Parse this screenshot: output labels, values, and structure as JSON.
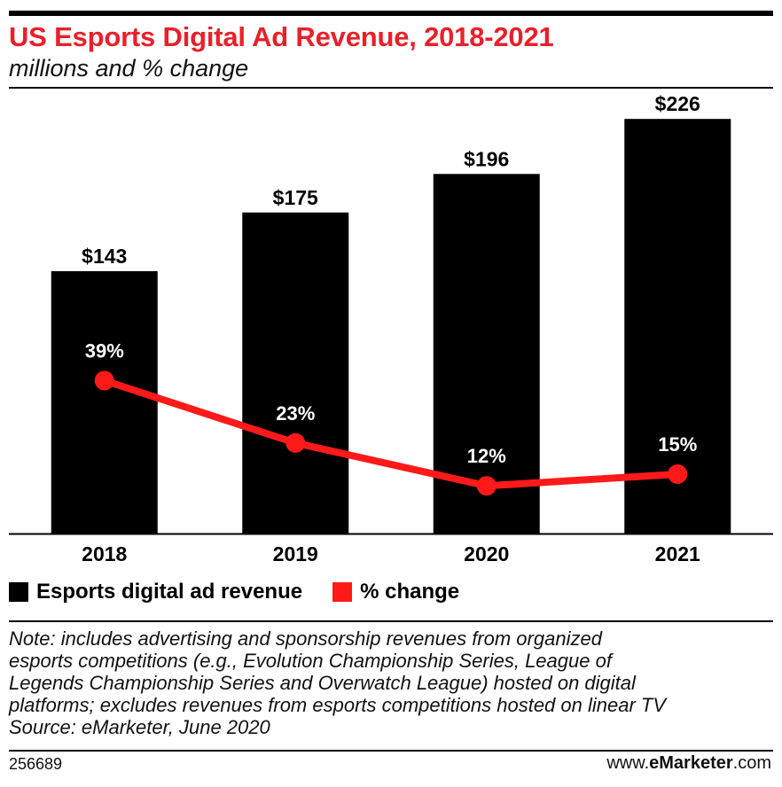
{
  "header": {
    "title": "US Esports Digital Ad Revenue, 2018-2021",
    "subtitle": "millions and % change"
  },
  "chart_data": {
    "type": "bar",
    "categories": [
      "2018",
      "2019",
      "2020",
      "2021"
    ],
    "series": [
      {
        "name": "Esports digital ad revenue",
        "type": "bar",
        "values": [
          143,
          175,
          196,
          226
        ],
        "labels": [
          "$143",
          "$175",
          "$196",
          "$226"
        ],
        "color": "#000000"
      },
      {
        "name": "% change",
        "type": "line",
        "values": [
          39,
          23,
          12,
          15
        ],
        "labels": [
          "39%",
          "23%",
          "12%",
          "15%"
        ],
        "color": "#ff1a1a"
      }
    ],
    "grid": false,
    "legend_position": "bottom-left"
  },
  "legend": {
    "bar_label": "Esports digital ad revenue",
    "line_label": "% change"
  },
  "note": {
    "lines": [
      "Note: includes advertising and sponsorship revenues from organized",
      "esports competitions (e.g., Evolution Championship Series, League of",
      "Legends Championship Series and Overwatch League) hosted on digital",
      "platforms; excludes revenues from esports competitions hosted on linear TV",
      "Source: eMarketer, June 2020"
    ]
  },
  "footer": {
    "chart_id": "256689",
    "brand_prefix": "www.",
    "brand_name": "eMarketer",
    "brand_suffix": ".com"
  }
}
